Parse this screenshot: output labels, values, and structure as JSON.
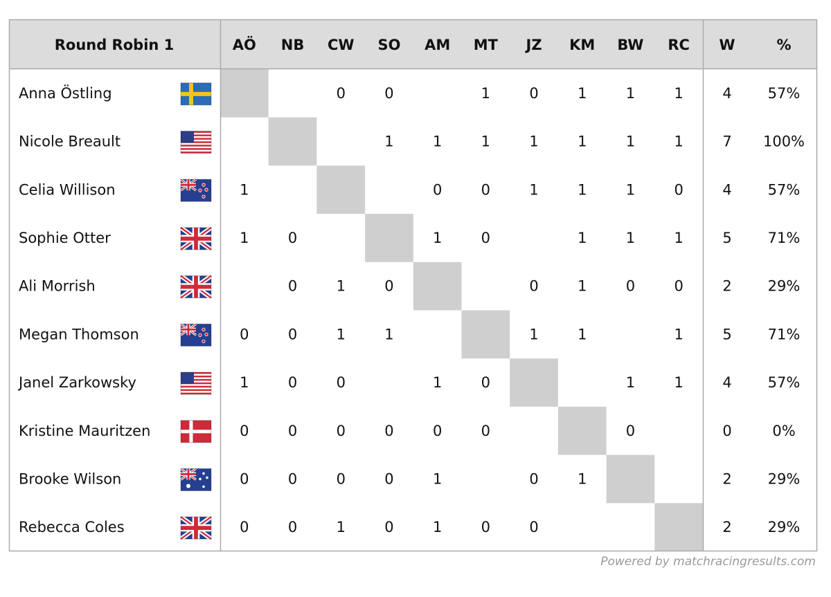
{
  "header": {
    "title": "Round Robin 1",
    "columns": [
      "AÖ",
      "NB",
      "CW",
      "SO",
      "AM",
      "MT",
      "JZ",
      "KM",
      "BW",
      "RC"
    ],
    "wins": "W",
    "percent": "%"
  },
  "table": {
    "rows": [
      {
        "name": "Anna Östling",
        "results": [
          null,
          null,
          0,
          0,
          null,
          1,
          0,
          1,
          1,
          1
        ],
        "wins": 4,
        "percent": "57%"
      },
      {
        "name": "Nicole Breault",
        "results": [
          null,
          null,
          null,
          1,
          1,
          1,
          1,
          1,
          1,
          1
        ],
        "wins": 7,
        "percent": "100%"
      },
      {
        "name": "Celia Willison",
        "results": [
          1,
          null,
          null,
          null,
          0,
          0,
          1,
          1,
          1,
          0
        ],
        "wins": 4,
        "percent": "57%"
      },
      {
        "name": "Sophie Otter",
        "results": [
          1,
          0,
          null,
          null,
          1,
          0,
          null,
          1,
          1,
          1
        ],
        "wins": 5,
        "percent": "71%"
      },
      {
        "name": "Ali Morrish",
        "results": [
          null,
          0,
          1,
          0,
          null,
          null,
          0,
          1,
          0,
          0
        ],
        "wins": 2,
        "percent": "29%"
      },
      {
        "name": "Megan Thomson",
        "results": [
          0,
          0,
          1,
          1,
          null,
          null,
          1,
          1,
          null,
          1
        ],
        "wins": 5,
        "percent": "71%"
      },
      {
        "name": "Janel Zarkowsky",
        "results": [
          1,
          0,
          0,
          null,
          1,
          0,
          null,
          null,
          1,
          1
        ],
        "wins": 4,
        "percent": "57%"
      },
      {
        "name": "Kristine Mauritzen",
        "results": [
          0,
          0,
          0,
          0,
          0,
          0,
          null,
          null,
          0,
          null
        ],
        "wins": 0,
        "percent": "0%"
      },
      {
        "name": "Brooke Wilson",
        "results": [
          0,
          0,
          0,
          0,
          1,
          null,
          0,
          1,
          null,
          null
        ],
        "wins": 2,
        "percent": "29%"
      },
      {
        "name": "Rebecca Coles",
        "results": [
          0,
          0,
          1,
          0,
          1,
          0,
          0,
          null,
          null,
          null
        ],
        "wins": 2,
        "percent": "29%"
      }
    ]
  },
  "footer": "Powered by matchracingresults.com"
}
